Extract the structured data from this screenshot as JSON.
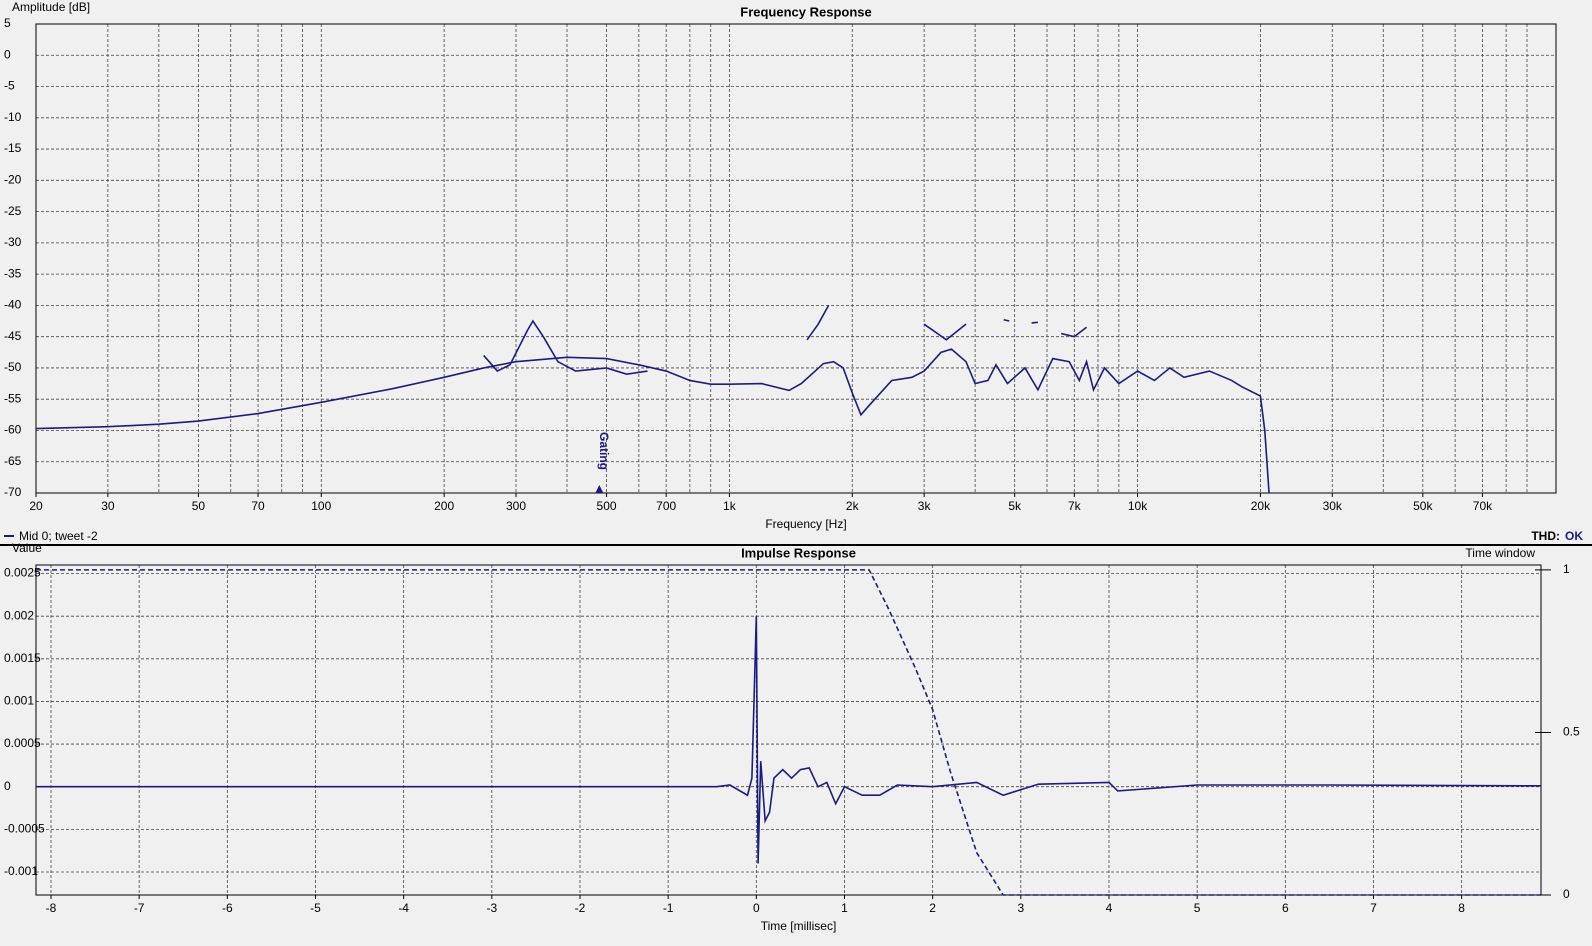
{
  "chart_data": [
    {
      "type": "line",
      "title": "Frequency Response",
      "xlabel": "Frequency [Hz]",
      "ylabel": "Amplitude [dB]",
      "xscale": "log",
      "xlim": [
        20,
        106000
      ],
      "ylim": [
        -70,
        5
      ],
      "xticks": [
        20,
        30,
        50,
        70,
        100,
        200,
        300,
        500,
        700,
        {
          "value": 1000,
          "label": "1k"
        },
        {
          "value": 2000,
          "label": "2k"
        },
        {
          "value": 3000,
          "label": "3k"
        },
        {
          "value": 5000,
          "label": "5k"
        },
        {
          "value": 7000,
          "label": "7k"
        },
        {
          "value": 10000,
          "label": "10k"
        },
        {
          "value": 20000,
          "label": "20k"
        },
        {
          "value": 30000,
          "label": "30k"
        },
        {
          "value": 50000,
          "label": "50k"
        },
        {
          "value": 70000,
          "label": "70k"
        }
      ],
      "minor_xticks": [
        40,
        60,
        80,
        90,
        400,
        600,
        800,
        900,
        4000,
        6000,
        8000,
        9000,
        40000,
        60000,
        80000,
        90000
      ],
      "yticks": [
        5,
        0,
        -5,
        -10,
        -15,
        -20,
        -25,
        -30,
        -35,
        -40,
        -45,
        -50,
        -55,
        -60,
        -65,
        -70
      ],
      "grid": true,
      "series": [
        {
          "name": "Mid 0; tweet -2",
          "color": "#1c1c80",
          "x": [
            20,
            30,
            40,
            50,
            70,
            100,
            150,
            200,
            250,
            300,
            400,
            500,
            600,
            700,
            800,
            900,
            1000,
            1200,
            1400,
            1500,
            1700,
            1800,
            1900,
            2000,
            2100,
            2200,
            2500,
            2800,
            3000,
            3300,
            3500,
            3800,
            4000,
            4300,
            4500,
            4800,
            5300,
            5700,
            6200,
            6800,
            7200,
            7500,
            7800,
            8300,
            9000,
            10000,
            11000,
            12000,
            13000,
            15000,
            17000,
            18000,
            20000,
            20500,
            21000
          ],
          "values": [
            -59.7,
            -59.4,
            -59,
            -58.5,
            -57.3,
            -55.5,
            -53.3,
            -51.5,
            -50,
            -49,
            -48.3,
            -48.5,
            -49.5,
            -50.5,
            -52,
            -52.6,
            -52.6,
            -52.5,
            -53.6,
            -52.5,
            -49.3,
            -49,
            -50,
            -54,
            -57.5,
            -56,
            -52,
            -51.5,
            -50.5,
            -47.5,
            -47,
            -49,
            -52.5,
            -52,
            -49.5,
            -52.5,
            -50,
            -53.5,
            -48.5,
            -49,
            -52,
            -49,
            -53.5,
            -50,
            -52.5,
            -50.5,
            -52,
            -50,
            -51.5,
            -50.5,
            -52,
            -53,
            -54.5,
            -60,
            -70
          ]
        },
        {
          "color": "#1c1c80",
          "x": [
            250,
            270,
            290,
            320,
            330,
            350,
            380,
            420,
            500,
            560,
            630,
            1000,
            1550,
            1650,
            1750,
            2500,
            3000,
            3400,
            3800,
            4200,
            4700,
            4850,
            5200,
            5500,
            5700,
            6000,
            6500,
            7000,
            7500
          ],
          "values": [
            -48,
            -50.5,
            -49.5,
            -44,
            -42.5,
            -45,
            -49,
            -50.5,
            -50,
            -51,
            -50.5,
            null,
            -45.5,
            -43,
            -40,
            null,
            -43,
            -45.5,
            -43,
            null,
            -42.3,
            -42.5,
            null,
            -42.8,
            -42.7,
            null,
            -44.5,
            -45,
            -43.5
          ]
        }
      ],
      "marker": {
        "x": 480,
        "label": "Gating"
      },
      "thd_label": "THD:",
      "thd_status": "OK"
    },
    {
      "type": "line",
      "title": "Impulse Response",
      "xlabel": "Time [millisec]",
      "ylabel": "Value",
      "y2label": "Time window",
      "xlim": [
        -8.17,
        8.9
      ],
      "ylim": [
        -0.00127,
        0.0026
      ],
      "y2lim": [
        0,
        1.015
      ],
      "xticks": [
        -8,
        -7,
        -6,
        -5,
        -4,
        -3,
        -2,
        -1,
        0,
        1,
        2,
        3,
        4,
        5,
        6,
        7,
        8
      ],
      "yticks": [
        0.0025,
        0.002,
        0.0015,
        0.001,
        0.0005,
        0,
        -0.0005,
        -0.001
      ],
      "y2ticks": [
        1,
        0.5,
        0
      ],
      "grid": true,
      "series": [
        {
          "color": "#1c1c80",
          "x": [
            -8.17,
            -0.45,
            -0.3,
            -0.1,
            -0.05,
            0,
            0.02,
            0.05,
            0.1,
            0.15,
            0.2,
            0.3,
            0.4,
            0.5,
            0.6,
            0.7,
            0.8,
            0.9,
            1.0,
            1.2,
            1.4,
            1.6,
            2.0,
            2.5,
            2.8,
            3.2,
            4.0,
            4.1,
            5.0,
            6.5,
            8.9
          ],
          "values": [
            0,
            0,
            2e-05,
            -0.0001,
            0.0001,
            0.002,
            -0.0009,
            0.0003,
            -0.0004,
            -0.0003,
            0.0001,
            0.0002,
            0.0001,
            0.0002,
            0.00022,
            0,
            5e-05,
            -0.0002,
            0,
            -0.0001,
            -0.0001,
            2e-05,
            0,
            5e-05,
            -0.0001,
            3e-05,
            5e-05,
            -5e-05,
            2e-05,
            2e-05,
            1e-05
          ]
        },
        {
          "color": "#1c1c80",
          "axis": "y2",
          "dashed": true,
          "x": [
            -8.17,
            1.28,
            1.5,
            1.8,
            2.0,
            2.2,
            2.5,
            2.8,
            8.9
          ],
          "values": [
            1,
            1,
            0.88,
            0.7,
            0.57,
            0.38,
            0.13,
            0,
            0
          ]
        }
      ]
    }
  ]
}
